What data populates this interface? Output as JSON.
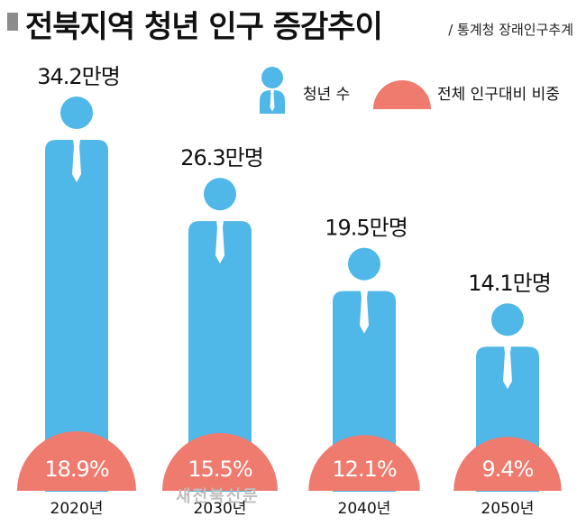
{
  "title": "전북지역 청년 인구 증감추이",
  "source": "/ 통계청 장래인구추계",
  "watermark": "새전북신문",
  "colors": {
    "person": "#4fb8e8",
    "share": "#ef7a6e"
  },
  "chart_data": {
    "type": "bar",
    "categories": [
      "2020년",
      "2030년",
      "2040년",
      "2050년"
    ],
    "series": [
      {
        "name": "청년 수",
        "values": [
          34.2,
          26.3,
          19.5,
          14.1
        ],
        "labels": [
          "34.2만명",
          "26.3만명",
          "19.5만명",
          "14.1만명"
        ]
      },
      {
        "name": "전체 인구대비 비중",
        "values": [
          18.9,
          15.5,
          12.1,
          9.4
        ],
        "labels": [
          "18.9%",
          "15.5%",
          "12.1%",
          "9.4%"
        ]
      }
    ]
  }
}
